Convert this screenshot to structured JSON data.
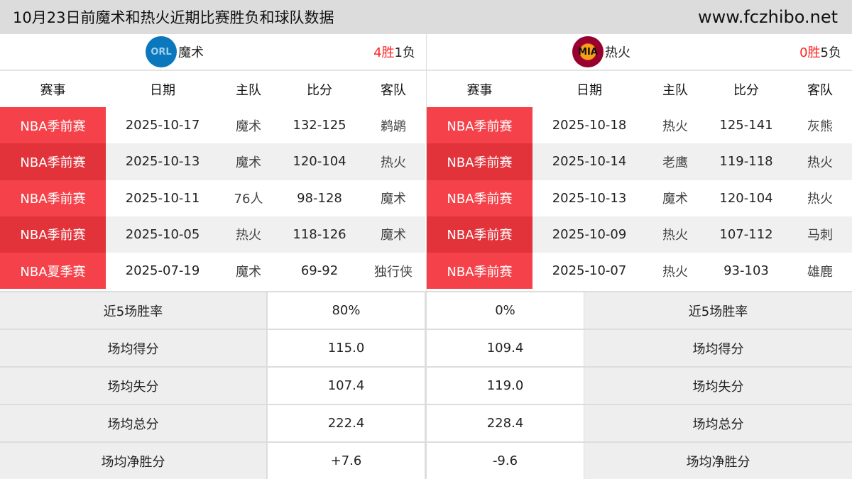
{
  "header": {
    "title": "10月23日前魔术和热火近期比赛胜负和球队数据",
    "site": "www.fczhibo.net"
  },
  "columns": [
    "赛事",
    "日期",
    "主队",
    "比分",
    "客队"
  ],
  "left": {
    "team": "魔术",
    "logo": "ORL",
    "logo_color": "#0b77bd",
    "wins": "4胜",
    "losses": "1负",
    "rows": [
      [
        "NBA季前赛",
        "2025-10-17",
        "魔术",
        "132-125",
        "鹈鹕"
      ],
      [
        "NBA季前赛",
        "2025-10-13",
        "魔术",
        "120-104",
        "热火"
      ],
      [
        "NBA季前赛",
        "2025-10-11",
        "76人",
        "98-128",
        "魔术"
      ],
      [
        "NBA季前赛",
        "2025-10-05",
        "热火",
        "118-126",
        "魔术"
      ],
      [
        "NBA夏季赛",
        "2025-07-19",
        "魔术",
        "69-92",
        "独行侠"
      ]
    ]
  },
  "right": {
    "team": "热火",
    "logo": "MIA",
    "logo_color": "#98002e",
    "wins": "0胜",
    "losses": "5负",
    "rows": [
      [
        "NBA季前赛",
        "2025-10-18",
        "热火",
        "125-141",
        "灰熊"
      ],
      [
        "NBA季前赛",
        "2025-10-14",
        "老鹰",
        "119-118",
        "热火"
      ],
      [
        "NBA季前赛",
        "2025-10-13",
        "魔术",
        "120-104",
        "热火"
      ],
      [
        "NBA季前赛",
        "2025-10-09",
        "热火",
        "107-112",
        "马刺"
      ],
      [
        "NBA季前赛",
        "2025-10-07",
        "热火",
        "93-103",
        "雄鹿"
      ]
    ]
  },
  "stats": [
    {
      "label": "近5场胜率",
      "left": "80%",
      "right": "0%"
    },
    {
      "label": "场均得分",
      "left": "115.0",
      "right": "109.4"
    },
    {
      "label": "场均失分",
      "left": "107.4",
      "right": "119.0"
    },
    {
      "label": "场均总分",
      "left": "222.4",
      "right": "228.4"
    },
    {
      "label": "场均净胜分",
      "left": "+7.6",
      "right": "-9.6"
    }
  ]
}
